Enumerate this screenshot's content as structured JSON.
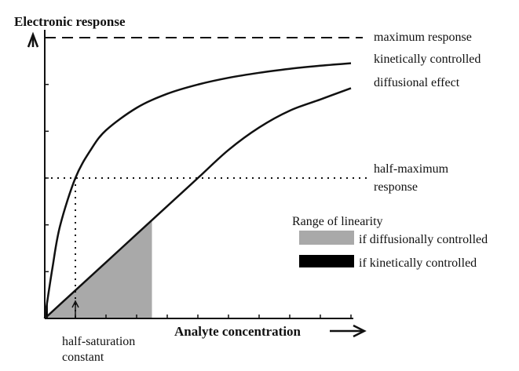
{
  "chart_data": {
    "type": "line",
    "title": "",
    "ylabel": "Electronic response",
    "xlabel": "Analyte concentration",
    "xlim": [
      0,
      10
    ],
    "ylim": [
      0,
      1
    ],
    "grid": false,
    "series": [
      {
        "name": "kinetically controlled",
        "x": [
          0,
          0.25,
          0.5,
          1,
          1.5,
          2,
          3,
          4,
          5,
          6,
          7,
          8,
          9,
          10
        ],
        "y": [
          0,
          0.18,
          0.33,
          0.5,
          0.6,
          0.67,
          0.75,
          0.8,
          0.833,
          0.857,
          0.875,
          0.889,
          0.9,
          0.909
        ]
      },
      {
        "name": "diffusional effect",
        "x": [
          0,
          1,
          2,
          3,
          4,
          5,
          6,
          7,
          8,
          9,
          10
        ],
        "y": [
          0,
          0.1,
          0.2,
          0.3,
          0.4,
          0.5,
          0.6,
          0.68,
          0.74,
          0.78,
          0.82
        ]
      }
    ],
    "reference_lines": [
      {
        "label": "maximum response",
        "y": 1,
        "style": "dashed"
      },
      {
        "label": "half-maximum response",
        "y": 0.5,
        "style": "dotted"
      }
    ],
    "half_saturation_constant": {
      "label_line1": "half-saturation",
      "label_line2": "constant",
      "x": 1
    },
    "legend": {
      "title": "Range of linearity",
      "placement": "right-middle",
      "items": [
        {
          "label": "if diffusionally controlled",
          "color": "#a9a9a9",
          "x_range": [
            0,
            3.5
          ]
        },
        {
          "label": "if kinetically controlled",
          "color": "#000000",
          "x_range": [
            0,
            0.1
          ]
        }
      ]
    },
    "colors": {
      "curve": "#111111",
      "diffusional_fill": "#a9a9a9",
      "kinetic_fill": "#000000"
    }
  }
}
